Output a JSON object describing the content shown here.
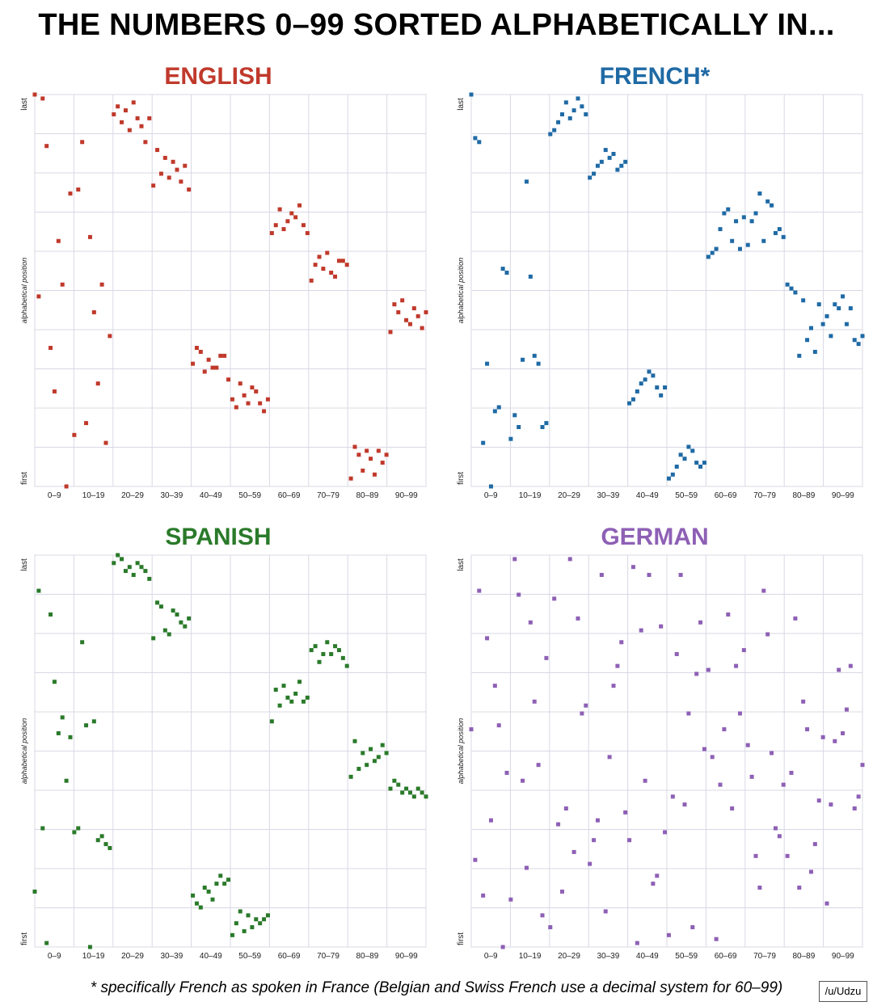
{
  "title": "THE NUMBERS 0–99 SORTED ALPHABETICALLY IN...",
  "footnote": "* specifically French as spoken in France (Belgian and Swiss French use a decimal system for 60–99)",
  "credit": "/u/Udzu",
  "colors": {
    "english": "#c0392b",
    "french": "#1f6aa5",
    "spanish": "#2a7a2a",
    "german": "#8e60b5",
    "grid": "#d8d8e6"
  },
  "chart_data": [
    {
      "type": "scatter",
      "title": "ENGLISH",
      "ylabel": "alphabetical position",
      "ytick_top": "last",
      "ytick_bottom": "first",
      "x_tick_labels": [
        "0–9",
        "10–19",
        "20–29",
        "30–39",
        "40–49",
        "50–59",
        "60–69",
        "70–79",
        "80–89",
        "90–99"
      ],
      "xlim": [
        0,
        99
      ],
      "ylim": [
        0,
        99
      ],
      "grid": true,
      "x": [
        0,
        1,
        2,
        3,
        4,
        5,
        6,
        7,
        8,
        9,
        10,
        11,
        12,
        13,
        14,
        15,
        16,
        17,
        18,
        19,
        20,
        21,
        22,
        23,
        24,
        25,
        26,
        27,
        28,
        29,
        30,
        31,
        32,
        33,
        34,
        35,
        36,
        37,
        38,
        39,
        40,
        41,
        42,
        43,
        44,
        45,
        46,
        47,
        48,
        49,
        50,
        51,
        52,
        53,
        54,
        55,
        56,
        57,
        58,
        59,
        60,
        61,
        62,
        63,
        64,
        65,
        66,
        67,
        68,
        69,
        70,
        71,
        72,
        73,
        74,
        75,
        76,
        77,
        78,
        79,
        80,
        81,
        82,
        83,
        84,
        85,
        86,
        87,
        88,
        89,
        90,
        91,
        92,
        93,
        94,
        95,
        96,
        97,
        98,
        99
      ],
      "y": [
        99,
        48,
        98,
        86,
        35,
        24,
        62,
        51,
        0,
        74,
        13,
        75,
        87,
        16,
        63,
        44,
        26,
        51,
        11,
        38,
        94,
        96,
        92,
        95,
        90,
        97,
        93,
        91,
        87,
        93,
        76,
        85,
        79,
        83,
        78,
        82,
        80,
        77,
        81,
        75,
        31,
        35,
        34,
        29,
        32,
        30,
        30,
        33,
        33,
        27,
        22,
        20,
        26,
        23,
        21,
        25,
        24,
        21,
        19,
        22,
        64,
        66,
        70,
        65,
        67,
        69,
        68,
        71,
        66,
        64,
        52,
        56,
        58,
        55,
        59,
        54,
        53,
        57,
        57,
        56,
        2,
        10,
        8,
        4,
        9,
        7,
        3,
        9,
        6,
        8,
        39,
        46,
        44,
        47,
        42,
        41,
        45,
        43,
        40,
        44
      ]
    },
    {
      "type": "scatter",
      "title": "FRENCH*",
      "ylabel": "alphabetical position",
      "ytick_top": "last",
      "ytick_bottom": "first",
      "x_tick_labels": [
        "0–9",
        "10–19",
        "20–29",
        "30–39",
        "40–49",
        "50–59",
        "60–69",
        "70–79",
        "80–89",
        "90–99"
      ],
      "xlim": [
        0,
        99
      ],
      "ylim": [
        0,
        99
      ],
      "grid": true,
      "x": [
        0,
        1,
        2,
        3,
        4,
        5,
        6,
        7,
        8,
        9,
        10,
        11,
        12,
        13,
        14,
        15,
        16,
        17,
        18,
        19,
        20,
        21,
        22,
        23,
        24,
        25,
        26,
        27,
        28,
        29,
        30,
        31,
        32,
        33,
        34,
        35,
        36,
        37,
        38,
        39,
        40,
        41,
        42,
        43,
        44,
        45,
        46,
        47,
        48,
        49,
        50,
        51,
        52,
        53,
        54,
        55,
        56,
        57,
        58,
        59,
        60,
        61,
        62,
        63,
        64,
        65,
        66,
        67,
        68,
        69,
        70,
        71,
        72,
        73,
        74,
        75,
        76,
        77,
        78,
        79,
        80,
        81,
        82,
        83,
        84,
        85,
        86,
        87,
        88,
        89,
        90,
        91,
        92,
        93,
        94,
        95,
        96,
        97,
        98,
        99
      ],
      "y": [
        99,
        88,
        87,
        11,
        31,
        0,
        19,
        20,
        55,
        54,
        12,
        18,
        15,
        32,
        77,
        53,
        33,
        31,
        15,
        16,
        89,
        90,
        92,
        94,
        97,
        93,
        95,
        98,
        96,
        94,
        78,
        79,
        81,
        82,
        85,
        83,
        84,
        80,
        81,
        82,
        21,
        22,
        24,
        26,
        27,
        29,
        28,
        25,
        23,
        25,
        2,
        3,
        5,
        8,
        7,
        10,
        9,
        6,
        5,
        6,
        58,
        59,
        60,
        65,
        69,
        70,
        62,
        67,
        60,
        68,
        61,
        67,
        69,
        74,
        62,
        72,
        71,
        64,
        65,
        63,
        51,
        50,
        49,
        33,
        47,
        37,
        40,
        34,
        46,
        41,
        43,
        38,
        46,
        45,
        48,
        41,
        45,
        37,
        36,
        38
      ]
    },
    {
      "type": "scatter",
      "title": "SPANISH",
      "ylabel": "alphabetical position",
      "ytick_top": "last",
      "ytick_bottom": "first",
      "x_tick_labels": [
        "0–9",
        "10–19",
        "20–29",
        "30–39",
        "40–49",
        "50–59",
        "60–69",
        "70–79",
        "80–89",
        "90–99"
      ],
      "xlim": [
        0,
        99
      ],
      "ylim": [
        0,
        99
      ],
      "grid": true,
      "x": [
        0,
        1,
        2,
        3,
        4,
        5,
        6,
        7,
        8,
        9,
        10,
        11,
        12,
        13,
        14,
        15,
        16,
        17,
        18,
        19,
        20,
        21,
        22,
        23,
        24,
        25,
        26,
        27,
        28,
        29,
        30,
        31,
        32,
        33,
        34,
        35,
        36,
        37,
        38,
        39,
        40,
        41,
        42,
        43,
        44,
        45,
        46,
        47,
        48,
        49,
        50,
        51,
        52,
        53,
        54,
        55,
        56,
        57,
        58,
        59,
        60,
        61,
        62,
        63,
        64,
        65,
        66,
        67,
        68,
        69,
        70,
        71,
        72,
        73,
        74,
        75,
        76,
        77,
        78,
        79,
        80,
        81,
        82,
        83,
        84,
        85,
        86,
        87,
        88,
        89,
        90,
        91,
        92,
        93,
        94,
        95,
        96,
        97,
        98,
        99
      ],
      "y": [
        14,
        90,
        30,
        1,
        84,
        67,
        54,
        58,
        42,
        53,
        29,
        30,
        77,
        56,
        0,
        57,
        27,
        28,
        26,
        25,
        97,
        99,
        98,
        95,
        96,
        94,
        97,
        96,
        95,
        93,
        78,
        87,
        86,
        80,
        79,
        85,
        84,
        82,
        81,
        83,
        13,
        11,
        10,
        15,
        14,
        12,
        16,
        18,
        16,
        17,
        3,
        6,
        9,
        4,
        8,
        5,
        7,
        6,
        7,
        8,
        57,
        65,
        61,
        66,
        63,
        62,
        64,
        67,
        62,
        63,
        75,
        76,
        72,
        74,
        77,
        74,
        76,
        75,
        73,
        71,
        43,
        52,
        45,
        49,
        46,
        50,
        47,
        48,
        51,
        49,
        40,
        42,
        41,
        39,
        40,
        39,
        38,
        40,
        39,
        38
      ]
    },
    {
      "type": "scatter",
      "title": "GERMAN",
      "ylabel": "alphabetical position",
      "ytick_top": "last",
      "ytick_bottom": "first",
      "x_tick_labels": [
        "0–9",
        "10–19",
        "20–29",
        "30–39",
        "40–49",
        "50–59",
        "60–69",
        "70–79",
        "80–89",
        "90–99"
      ],
      "xlim": [
        0,
        99
      ],
      "ylim": [
        0,
        99
      ],
      "grid": true,
      "x": [
        0,
        1,
        2,
        3,
        4,
        5,
        6,
        7,
        8,
        9,
        10,
        11,
        12,
        13,
        14,
        15,
        16,
        17,
        18,
        19,
        20,
        21,
        22,
        23,
        24,
        25,
        26,
        27,
        28,
        29,
        30,
        31,
        32,
        33,
        34,
        35,
        36,
        37,
        38,
        39,
        40,
        41,
        42,
        43,
        44,
        45,
        46,
        47,
        48,
        49,
        50,
        51,
        52,
        53,
        54,
        55,
        56,
        57,
        58,
        59,
        60,
        61,
        62,
        63,
        64,
        65,
        66,
        67,
        68,
        69,
        70,
        71,
        72,
        73,
        74,
        75,
        76,
        77,
        78,
        79,
        80,
        81,
        82,
        83,
        84,
        85,
        86,
        87,
        88,
        89,
        90,
        91,
        92,
        93,
        94,
        95,
        96,
        97,
        98,
        99
      ],
      "y": [
        55,
        22,
        90,
        13,
        78,
        32,
        66,
        56,
        0,
        44,
        12,
        98,
        89,
        42,
        20,
        82,
        62,
        46,
        8,
        73,
        5,
        88,
        31,
        14,
        35,
        98,
        24,
        83,
        59,
        61,
        21,
        27,
        32,
        94,
        9,
        48,
        66,
        71,
        77,
        34,
        27,
        96,
        1,
        80,
        42,
        94,
        16,
        18,
        81,
        29,
        3,
        38,
        74,
        94,
        36,
        59,
        5,
        69,
        82,
        50,
        70,
        48,
        2,
        41,
        55,
        84,
        35,
        71,
        59,
        75,
        51,
        43,
        23,
        15,
        90,
        79,
        49,
        30,
        28,
        41,
        23,
        44,
        83,
        15,
        62,
        55,
        19,
        26,
        37,
        53,
        11,
        36,
        52,
        70,
        54,
        60,
        71,
        35,
        38,
        46
      ]
    }
  ]
}
